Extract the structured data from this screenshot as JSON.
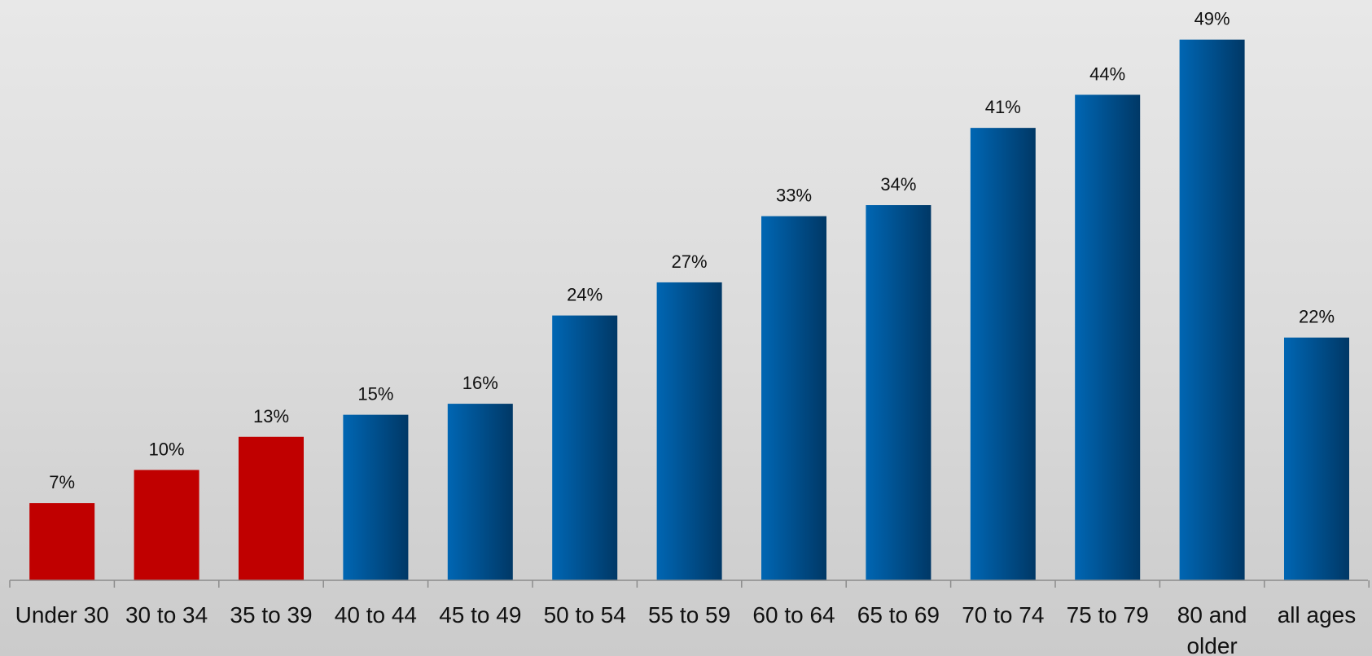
{
  "chart_data": {
    "type": "bar",
    "title": "",
    "xlabel": "",
    "ylabel": "",
    "categories": [
      "Under 30",
      "30 to 34",
      "35 to 39",
      "40 to 44",
      "45 to 49",
      "50 to 54",
      "55 to 59",
      "60 to 64",
      "65 to 69",
      "70 to 74",
      "75 to 79",
      "80 and older",
      "all ages"
    ],
    "values": [
      7,
      10,
      13,
      15,
      16,
      24,
      27,
      33,
      34,
      41,
      44,
      49,
      22
    ],
    "value_labels": [
      "7%",
      "10%",
      "13%",
      "15%",
      "16%",
      "24%",
      "27%",
      "33%",
      "34%",
      "41%",
      "44%",
      "49%",
      "22%"
    ],
    "ylim": [
      0,
      52
    ],
    "grid": false,
    "legend": "none",
    "bar_colors": [
      "#c00000",
      "#c00000",
      "#c00000",
      "#005fa8",
      "#005fa8",
      "#005fa8",
      "#005fa8",
      "#005fa8",
      "#005fa8",
      "#005fa8",
      "#005fa8",
      "#005fa8",
      "#005fa8"
    ],
    "colors": {
      "highlight": "#c00000",
      "bar_light": "#0066b3",
      "bar_dark": "#003866",
      "axis": "#8c8c8c"
    }
  }
}
